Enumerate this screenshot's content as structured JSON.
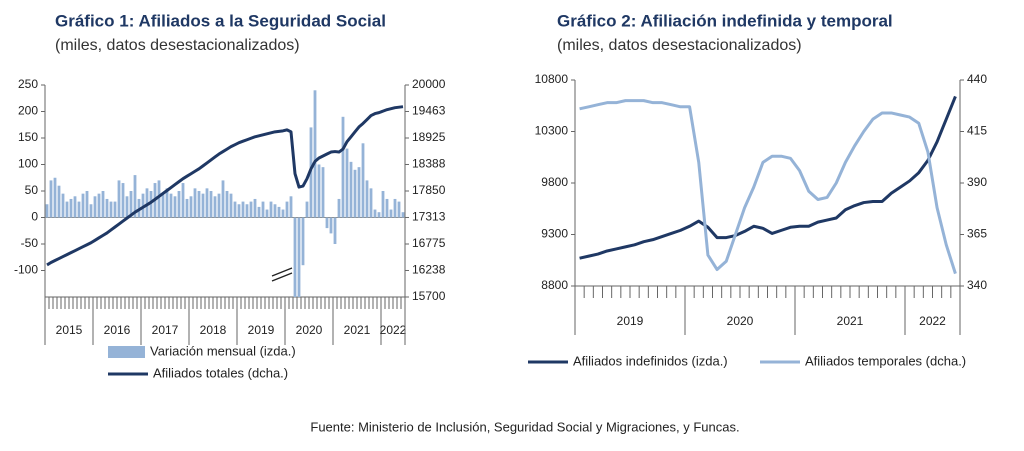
{
  "chart_data": [
    {
      "type": "bar_line",
      "title": "Gráfico 1: Afiliados a la Seguridad Social",
      "subtitle": "(miles, datos desestacionalizados)",
      "categories": [
        null,
        null,
        null,
        null,
        null,
        null,
        null,
        null,
        null,
        null,
        null,
        null,
        null,
        null,
        null,
        null,
        null,
        null,
        null,
        null,
        null,
        null,
        null,
        null,
        null,
        null,
        null,
        null,
        null,
        null,
        null,
        null,
        null,
        null,
        null,
        null,
        null,
        null,
        null,
        null,
        null,
        null,
        null,
        null,
        null,
        null,
        null,
        null,
        null,
        null,
        null,
        null,
        null,
        null,
        null,
        null,
        null,
        null,
        null,
        null,
        null,
        null,
        null,
        null,
        null,
        null,
        null,
        null,
        null,
        null,
        null,
        null,
        null,
        null,
        null,
        null,
        null,
        null,
        null,
        null,
        null,
        null,
        null,
        null,
        null,
        null,
        null,
        null,
        null,
        null
      ],
      "year_labels": [
        "2015",
        "2016",
        "2017",
        "2018",
        "2019",
        "2020",
        "2021",
        "2022"
      ],
      "series": [
        {
          "name": "Variación mensual (izda.)",
          "type": "bar",
          "color": "#95b3d7",
          "values": [
            25,
            70,
            75,
            60,
            45,
            30,
            35,
            40,
            30,
            45,
            50,
            25,
            40,
            45,
            50,
            35,
            30,
            30,
            70,
            65,
            40,
            50,
            80,
            35,
            45,
            55,
            50,
            65,
            70,
            45,
            55,
            45,
            40,
            50,
            65,
            35,
            40,
            55,
            50,
            45,
            55,
            50,
            40,
            45,
            70,
            50,
            45,
            30,
            25,
            30,
            25,
            30,
            35,
            20,
            30,
            15,
            30,
            25,
            20,
            15,
            30,
            40,
            -150,
            -150,
            -90,
            30,
            170,
            240,
            100,
            95,
            -20,
            -30,
            -50,
            35,
            190,
            130,
            105,
            90,
            95,
            140,
            70,
            55,
            15,
            10,
            50,
            35,
            15,
            35,
            30,
            10
          ]
        },
        {
          "name": "Afiliados totales (dcha.)",
          "type": "line",
          "axis": "y2",
          "color": "#1f3864",
          "values": [
            16350,
            16400,
            16440,
            16480,
            16520,
            16560,
            16600,
            16640,
            16680,
            16720,
            16760,
            16800,
            16850,
            16900,
            16950,
            17000,
            17060,
            17120,
            17180,
            17240,
            17300,
            17360,
            17420,
            17470,
            17520,
            17570,
            17620,
            17680,
            17740,
            17800,
            17860,
            17920,
            17980,
            18040,
            18100,
            18150,
            18200,
            18250,
            18300,
            18360,
            18420,
            18480,
            18540,
            18600,
            18650,
            18700,
            18750,
            18790,
            18830,
            18860,
            18890,
            18920,
            18950,
            18970,
            18990,
            19010,
            19030,
            19050,
            19060,
            19070,
            19090,
            19050,
            18200,
            17930,
            17950,
            18100,
            18300,
            18450,
            18520,
            18560,
            18600,
            18640,
            18650,
            18640,
            18700,
            18850,
            18950,
            19050,
            19150,
            19220,
            19300,
            19380,
            19420,
            19440,
            19470,
            19500,
            19520,
            19540,
            19550,
            19560
          ]
        }
      ],
      "ylim": [
        -150,
        250
      ],
      "yticks": [
        250,
        200,
        150,
        100,
        50,
        0,
        -50,
        -100
      ],
      "y2lim": [
        15700,
        20000
      ],
      "y2ticks": [
        20000,
        19463,
        18925,
        18388,
        17850,
        17313,
        16775,
        16238,
        15700
      ],
      "grid": false
    },
    {
      "type": "line",
      "title": "Gráfico 2: Afiliación indefinida y temporal",
      "subtitle": "(miles, datos desestacionalizados)",
      "categories": [
        null,
        null,
        null,
        null,
        null,
        null,
        null,
        null,
        null,
        null,
        null,
        null,
        null,
        null,
        null,
        null,
        null,
        null,
        null,
        null,
        null,
        null,
        null,
        null,
        null,
        null,
        null,
        null,
        null,
        null,
        null,
        null,
        null,
        null,
        null,
        null,
        null,
        null,
        null,
        null,
        null,
        null
      ],
      "year_labels": [
        "2019",
        "2020",
        "2021",
        "2022"
      ],
      "series": [
        {
          "name": "Afiliados indefinidos (izda.)",
          "type": "line",
          "color": "#1f3864",
          "values": [
            9070,
            9090,
            9110,
            9140,
            9160,
            9180,
            9200,
            9230,
            9250,
            9280,
            9310,
            9340,
            9380,
            9430,
            9370,
            9270,
            9270,
            9290,
            9330,
            9380,
            9360,
            9310,
            9340,
            9370,
            9380,
            9380,
            9420,
            9440,
            9460,
            9540,
            9580,
            9610,
            9620,
            9620,
            9700,
            9760,
            9820,
            9900,
            10020,
            10200,
            10420,
            10640
          ]
        },
        {
          "name": "Afiliados temporales (dcha.)",
          "type": "line",
          "axis": "y2",
          "color": "#95b3d7",
          "values": [
            426,
            427,
            428,
            429,
            429,
            430,
            430,
            430,
            429,
            429,
            428,
            427,
            427,
            400,
            355,
            348,
            352,
            365,
            378,
            388,
            400,
            403,
            403,
            402,
            396,
            386,
            382,
            383,
            390,
            400,
            408,
            415,
            421,
            424,
            424,
            423,
            422,
            419,
            405,
            378,
            360,
            346
          ]
        }
      ],
      "ylim": [
        8800,
        10800
      ],
      "yticks": [
        10800,
        10300,
        9800,
        9300,
        8800
      ],
      "y2lim": [
        340,
        440
      ],
      "y2ticks": [
        440,
        415,
        390,
        365,
        340
      ],
      "grid": false
    }
  ],
  "source": "Fuente: Ministerio de Inclusión, Seguridad Social y Migraciones, y Funcas."
}
